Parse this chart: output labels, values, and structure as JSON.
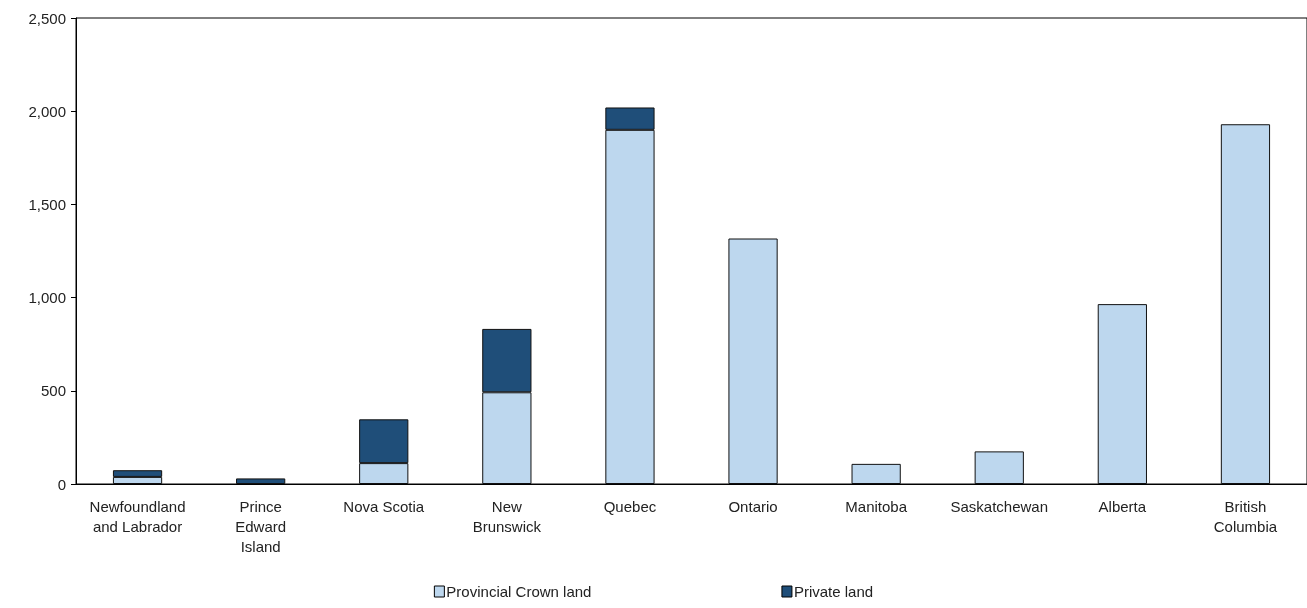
{
  "chart_data": {
    "type": "bar",
    "stacked": true,
    "categories": [
      "Newfoundland and Labrador",
      "Prince Edward Island",
      "Nova Scotia",
      "New Brunswick",
      "Quebec",
      "Ontario",
      "Manitoba",
      "Saskatchewan",
      "Alberta",
      "British Columbia"
    ],
    "series": [
      {
        "name": "Provincial Crown land",
        "color": "#bdd7ee",
        "values": [
          38,
          null,
          112,
          492,
          1900,
          1317,
          108,
          175,
          965,
          1930
        ]
      },
      {
        "name": "Private land",
        "color": "#1f4e79",
        "values": [
          36,
          30,
          235,
          340,
          120,
          null,
          null,
          null,
          null,
          null
        ]
      }
    ],
    "ylim": [
      0,
      2500
    ],
    "yticks": [
      0,
      500,
      {
        "value": 1000,
        "label": "1,000"
      },
      {
        "value": 1500,
        "label": "1,500"
      },
      {
        "value": 2000,
        "label": "2,000"
      },
      {
        "value": 2500,
        "label": "2,500"
      }
    ],
    "legend": "bottom"
  }
}
